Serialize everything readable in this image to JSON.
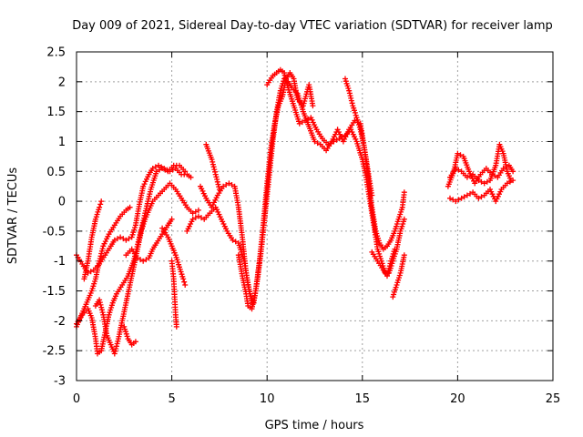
{
  "chart_data": {
    "type": "scatter",
    "title": "Day 009 of 2021, Sidereal Day-to-day VTEC variation (SDTVAR) for receiver lamp",
    "xlabel": "GPS time / hours",
    "ylabel": "SDTVAR / TECUs",
    "xlim": [
      0,
      25
    ],
    "ylim": [
      -3,
      2.5
    ],
    "xticks": [
      0,
      5,
      10,
      15,
      20,
      25
    ],
    "xtick_labels": [
      "0",
      "5",
      "10",
      "15",
      "20",
      "25"
    ],
    "yticks": [
      -3,
      -2.5,
      -2,
      -1.5,
      -1,
      -0.5,
      0,
      0.5,
      1,
      1.5,
      2,
      2.5
    ],
    "ytick_labels": [
      "-3",
      "-2.5",
      "-2",
      "-1.5",
      "-1",
      "-0.5",
      "0",
      "0.5",
      "1",
      "1.5",
      "2",
      "2.5"
    ],
    "grid": true,
    "marker": "plus",
    "color": "#ff0000",
    "series": [
      {
        "values": [
          [
            0.0,
            -0.9
          ],
          [
            0.3,
            -1.05
          ],
          [
            0.6,
            -1.2
          ],
          [
            0.9,
            -1.15
          ],
          [
            1.2,
            -1.05
          ],
          [
            1.5,
            -0.9
          ],
          [
            1.8,
            -0.75
          ],
          [
            2.0,
            -0.65
          ],
          [
            2.3,
            -0.6
          ],
          [
            2.6,
            -0.65
          ],
          [
            2.9,
            -0.6
          ],
          [
            3.1,
            -0.4
          ],
          [
            3.3,
            -0.05
          ],
          [
            3.5,
            0.25
          ],
          [
            3.8,
            0.45
          ],
          [
            4.0,
            0.55
          ],
          [
            4.3,
            0.6
          ],
          [
            4.6,
            0.55
          ],
          [
            4.9,
            0.5
          ],
          [
            5.2,
            0.55
          ],
          [
            5.5,
            0.45
          ],
          [
            5.8,
            0.45
          ],
          [
            6.0,
            0.4
          ]
        ]
      },
      {
        "values": [
          [
            0.0,
            -2.1
          ],
          [
            0.2,
            -1.95
          ],
          [
            0.4,
            -1.8
          ],
          [
            0.6,
            -1.65
          ],
          [
            0.8,
            -1.5
          ],
          [
            1.0,
            -1.3
          ],
          [
            1.2,
            -1.0
          ],
          [
            1.4,
            -0.75
          ],
          [
            1.7,
            -0.55
          ],
          [
            2.0,
            -0.4
          ],
          [
            2.3,
            -0.25
          ],
          [
            2.6,
            -0.15
          ],
          [
            2.8,
            -0.1
          ]
        ]
      },
      {
        "values": [
          [
            0.0,
            -2.05
          ],
          [
            0.3,
            -1.9
          ],
          [
            0.6,
            -1.8
          ],
          [
            0.8,
            -1.95
          ],
          [
            1.0,
            -2.3
          ],
          [
            1.1,
            -2.55
          ],
          [
            1.3,
            -2.5
          ],
          [
            1.5,
            -2.2
          ],
          [
            1.7,
            -1.9
          ],
          [
            1.9,
            -1.7
          ],
          [
            2.1,
            -1.55
          ],
          [
            2.4,
            -1.4
          ],
          [
            2.7,
            -1.25
          ],
          [
            3.0,
            -1.0
          ],
          [
            3.3,
            -0.6
          ],
          [
            3.6,
            -0.2
          ],
          [
            3.9,
            0.2
          ],
          [
            4.2,
            0.5
          ],
          [
            4.5,
            0.55
          ],
          [
            4.8,
            0.5
          ],
          [
            5.1,
            0.6
          ],
          [
            5.4,
            0.6
          ],
          [
            5.7,
            0.5
          ]
        ]
      },
      {
        "values": [
          [
            0.4,
            -1.3
          ],
          [
            0.6,
            -1.0
          ],
          [
            0.8,
            -0.6
          ],
          [
            1.0,
            -0.3
          ],
          [
            1.2,
            -0.1
          ],
          [
            1.3,
            0.0
          ]
        ]
      },
      {
        "values": [
          [
            1.0,
            -1.75
          ],
          [
            1.2,
            -1.65
          ],
          [
            1.4,
            -1.9
          ],
          [
            1.6,
            -2.25
          ],
          [
            1.8,
            -2.4
          ],
          [
            2.0,
            -2.55
          ],
          [
            2.2,
            -2.3
          ],
          [
            2.4,
            -2.0
          ],
          [
            2.6,
            -1.7
          ],
          [
            2.8,
            -1.4
          ],
          [
            3.0,
            -1.1
          ],
          [
            3.2,
            -0.8
          ],
          [
            3.4,
            -0.5
          ],
          [
            3.6,
            -0.3
          ],
          [
            3.8,
            -0.15
          ],
          [
            4.0,
            0.0
          ],
          [
            4.3,
            0.1
          ],
          [
            4.6,
            0.2
          ],
          [
            4.9,
            0.3
          ],
          [
            5.2,
            0.2
          ],
          [
            5.5,
            0.05
          ],
          [
            5.8,
            -0.1
          ],
          [
            6.1,
            -0.2
          ],
          [
            6.4,
            -0.15
          ]
        ]
      },
      {
        "values": [
          [
            2.5,
            -2.1
          ],
          [
            2.7,
            -2.3
          ],
          [
            2.9,
            -2.4
          ],
          [
            3.1,
            -2.35
          ]
        ]
      },
      {
        "values": [
          [
            2.6,
            -0.9
          ],
          [
            2.9,
            -0.8
          ],
          [
            3.2,
            -0.95
          ],
          [
            3.5,
            -1.0
          ],
          [
            3.8,
            -0.95
          ],
          [
            4.0,
            -0.8
          ],
          [
            4.2,
            -0.7
          ],
          [
            4.5,
            -0.55
          ],
          [
            4.8,
            -0.4
          ],
          [
            5.0,
            -0.3
          ]
        ]
      },
      {
        "values": [
          [
            4.5,
            -0.45
          ],
          [
            4.8,
            -0.6
          ],
          [
            5.0,
            -0.75
          ],
          [
            5.2,
            -0.9
          ],
          [
            5.4,
            -1.1
          ],
          [
            5.6,
            -1.3
          ],
          [
            5.7,
            -1.4
          ]
        ]
      },
      {
        "values": [
          [
            5.0,
            -1.0
          ],
          [
            5.1,
            -1.3
          ],
          [
            5.15,
            -1.6
          ],
          [
            5.2,
            -1.9
          ],
          [
            5.25,
            -2.1
          ]
        ]
      },
      {
        "values": [
          [
            5.8,
            -0.5
          ],
          [
            6.1,
            -0.3
          ],
          [
            6.4,
            -0.25
          ],
          [
            6.7,
            -0.3
          ],
          [
            7.0,
            -0.2
          ],
          [
            7.3,
            -0.1
          ],
          [
            7.6,
            -0.3
          ],
          [
            7.9,
            -0.5
          ],
          [
            8.2,
            -0.65
          ],
          [
            8.5,
            -0.7
          ],
          [
            8.8,
            -1.0
          ],
          [
            9.0,
            -1.4
          ],
          [
            9.2,
            -1.7
          ]
        ]
      },
      {
        "values": [
          [
            6.5,
            0.25
          ],
          [
            6.8,
            0.05
          ],
          [
            7.1,
            -0.1
          ],
          [
            7.4,
            0.1
          ],
          [
            7.7,
            0.25
          ],
          [
            8.0,
            0.3
          ],
          [
            8.3,
            0.25
          ],
          [
            8.5,
            -0.1
          ],
          [
            8.7,
            -0.6
          ],
          [
            8.9,
            -1.2
          ],
          [
            9.1,
            -1.55
          ],
          [
            9.3,
            -1.7
          ],
          [
            9.5,
            -1.3
          ],
          [
            9.7,
            -0.8
          ],
          [
            9.9,
            -0.2
          ],
          [
            10.1,
            0.4
          ],
          [
            10.3,
            1.0
          ],
          [
            10.5,
            1.5
          ],
          [
            10.7,
            1.85
          ],
          [
            10.9,
            2.05
          ],
          [
            11.1,
            2.0
          ],
          [
            11.3,
            1.9
          ],
          [
            11.6,
            1.8
          ],
          [
            11.9,
            1.5
          ],
          [
            12.2,
            1.25
          ],
          [
            12.5,
            1.0
          ],
          [
            12.8,
            0.95
          ],
          [
            13.1,
            0.85
          ],
          [
            13.4,
            1.0
          ],
          [
            13.7,
            1.2
          ],
          [
            14.0,
            1.0
          ],
          [
            14.3,
            1.2
          ],
          [
            14.6,
            1.35
          ],
          [
            14.9,
            1.3
          ],
          [
            15.1,
            0.9
          ],
          [
            15.3,
            0.4
          ],
          [
            15.5,
            -0.1
          ],
          [
            15.7,
            -0.5
          ],
          [
            15.9,
            -0.7
          ],
          [
            16.1,
            -0.8
          ],
          [
            16.3,
            -0.75
          ],
          [
            16.5,
            -0.65
          ],
          [
            16.7,
            -0.5
          ],
          [
            16.9,
            -0.3
          ],
          [
            17.1,
            -0.1
          ],
          [
            17.2,
            0.15
          ]
        ]
      },
      {
        "values": [
          [
            6.8,
            0.95
          ],
          [
            7.1,
            0.7
          ],
          [
            7.3,
            0.45
          ],
          [
            7.5,
            0.2
          ]
        ]
      },
      {
        "values": [
          [
            8.5,
            -0.9
          ],
          [
            8.7,
            -1.25
          ],
          [
            8.9,
            -1.55
          ],
          [
            9.0,
            -1.75
          ],
          [
            9.2,
            -1.8
          ],
          [
            9.4,
            -1.5
          ],
          [
            9.6,
            -1.0
          ],
          [
            9.8,
            -0.4
          ],
          [
            10.0,
            0.3
          ],
          [
            10.2,
            0.9
          ],
          [
            10.4,
            1.3
          ],
          [
            10.6,
            1.6
          ],
          [
            10.8,
            1.75
          ],
          [
            11.0,
            2.05
          ],
          [
            11.2,
            2.15
          ],
          [
            11.4,
            2.05
          ],
          [
            11.6,
            1.7
          ],
          [
            11.9,
            1.6
          ],
          [
            12.2,
            1.95
          ],
          [
            12.4,
            1.6
          ]
        ]
      },
      {
        "values": [
          [
            10.0,
            1.95
          ],
          [
            10.3,
            2.1
          ],
          [
            10.5,
            2.15
          ],
          [
            10.7,
            2.2
          ],
          [
            10.9,
            2.15
          ],
          [
            11.1,
            1.9
          ],
          [
            11.4,
            1.6
          ],
          [
            11.7,
            1.3
          ],
          [
            12.0,
            1.35
          ],
          [
            12.3,
            1.4
          ],
          [
            12.6,
            1.2
          ],
          [
            12.9,
            1.05
          ],
          [
            13.2,
            0.95
          ],
          [
            13.5,
            1.0
          ],
          [
            13.8,
            1.05
          ],
          [
            14.1,
            1.1
          ],
          [
            14.4,
            1.2
          ],
          [
            14.7,
            1.0
          ],
          [
            15.0,
            0.7
          ],
          [
            15.2,
            0.4
          ],
          [
            15.4,
            0.0
          ],
          [
            15.6,
            -0.4
          ],
          [
            15.8,
            -0.8
          ],
          [
            16.0,
            -1.0
          ],
          [
            16.2,
            -1.2
          ],
          [
            16.4,
            -1.2
          ],
          [
            16.6,
            -1.0
          ],
          [
            16.8,
            -0.8
          ],
          [
            17.0,
            -0.5
          ],
          [
            17.2,
            -0.3
          ]
        ]
      },
      {
        "values": [
          [
            14.1,
            2.05
          ],
          [
            14.3,
            1.85
          ],
          [
            14.5,
            1.6
          ],
          [
            14.7,
            1.4
          ],
          [
            14.9,
            1.2
          ],
          [
            15.1,
            0.9
          ],
          [
            15.3,
            0.5
          ],
          [
            15.5,
            0.1
          ]
        ]
      },
      {
        "values": [
          [
            15.5,
            -0.85
          ],
          [
            15.8,
            -1.0
          ],
          [
            16.1,
            -1.15
          ],
          [
            16.3,
            -1.25
          ],
          [
            16.5,
            -1.0
          ],
          [
            16.7,
            -0.8
          ]
        ]
      },
      {
        "values": [
          [
            16.6,
            -1.6
          ],
          [
            16.8,
            -1.4
          ],
          [
            17.0,
            -1.2
          ],
          [
            17.2,
            -0.9
          ]
        ]
      },
      {
        "values": [
          [
            19.5,
            0.25
          ],
          [
            19.8,
            0.5
          ],
          [
            20.0,
            0.8
          ],
          [
            20.3,
            0.75
          ],
          [
            20.6,
            0.5
          ],
          [
            20.9,
            0.3
          ],
          [
            21.2,
            0.45
          ],
          [
            21.5,
            0.55
          ],
          [
            21.8,
            0.45
          ],
          [
            22.1,
            0.4
          ],
          [
            22.4,
            0.55
          ],
          [
            22.7,
            0.6
          ],
          [
            22.9,
            0.5
          ]
        ]
      },
      {
        "values": [
          [
            19.6,
            0.4
          ],
          [
            19.9,
            0.55
          ],
          [
            20.2,
            0.5
          ],
          [
            20.5,
            0.4
          ],
          [
            20.8,
            0.45
          ],
          [
            21.1,
            0.35
          ],
          [
            21.4,
            0.3
          ],
          [
            21.7,
            0.35
          ],
          [
            22.0,
            0.6
          ],
          [
            22.2,
            0.95
          ],
          [
            22.4,
            0.8
          ],
          [
            22.6,
            0.5
          ],
          [
            22.8,
            0.35
          ]
        ]
      },
      {
        "values": [
          [
            19.6,
            0.05
          ],
          [
            19.9,
            0.0
          ],
          [
            20.2,
            0.05
          ],
          [
            20.5,
            0.1
          ],
          [
            20.8,
            0.15
          ],
          [
            21.1,
            0.05
          ],
          [
            21.4,
            0.1
          ],
          [
            21.7,
            0.2
          ],
          [
            22.0,
            0.0
          ],
          [
            22.3,
            0.2
          ],
          [
            22.6,
            0.3
          ],
          [
            22.9,
            0.35
          ]
        ]
      }
    ]
  }
}
